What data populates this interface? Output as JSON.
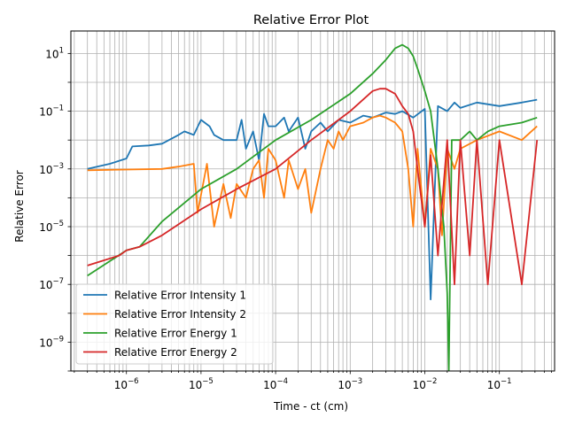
{
  "chart_data": {
    "type": "line",
    "title": "Relative Error Plot",
    "xlabel": "Time - ct (cm)",
    "ylabel": "Relative Error",
    "xscale": "log",
    "yscale": "log",
    "xlim": [
      1.8e-07,
      0.55
    ],
    "ylim": [
      1e-10,
      60
    ],
    "grid": "both (major and minor on x, major on y)",
    "legend": "lower-left",
    "x_ticks": [
      {
        "value": 1e-06,
        "base": "10",
        "exp": "−6"
      },
      {
        "value": 1e-05,
        "base": "10",
        "exp": "−5"
      },
      {
        "value": 0.0001,
        "base": "10",
        "exp": "−4"
      },
      {
        "value": 0.001,
        "base": "10",
        "exp": "−3"
      },
      {
        "value": 0.01,
        "base": "10",
        "exp": "−2"
      },
      {
        "value": 0.1,
        "base": "10",
        "exp": "−1"
      }
    ],
    "y_ticks": [
      {
        "value": 1e-09,
        "base": "10",
        "exp": "−9"
      },
      {
        "value": 1e-07,
        "base": "10",
        "exp": "−7"
      },
      {
        "value": 1e-05,
        "base": "10",
        "exp": "−5"
      },
      {
        "value": 0.001,
        "base": "10",
        "exp": "−3"
      },
      {
        "value": 0.1,
        "base": "10",
        "exp": "−1"
      },
      {
        "value": 10,
        "base": "10",
        "exp": "1"
      }
    ],
    "series": [
      {
        "name": "Relative Error Intensity 1",
        "color": "#1f77b4",
        "points": [
          [
            3e-07,
            0.001
          ],
          [
            6e-07,
            0.0015
          ],
          [
            1e-06,
            0.0023
          ],
          [
            1.2e-06,
            0.006
          ],
          [
            2e-06,
            0.0065
          ],
          [
            3e-06,
            0.0075
          ],
          [
            5e-06,
            0.015
          ],
          [
            6e-06,
            0.02
          ],
          [
            8e-06,
            0.015
          ],
          [
            1e-05,
            0.05
          ],
          [
            1.3e-05,
            0.03
          ],
          [
            1.5e-05,
            0.015
          ],
          [
            2e-05,
            0.01
          ],
          [
            2.5e-05,
            0.01
          ],
          [
            3e-05,
            0.01
          ],
          [
            3.5e-05,
            0.05
          ],
          [
            4e-05,
            0.005
          ],
          [
            5e-05,
            0.02
          ],
          [
            6e-05,
            0.002
          ],
          [
            7e-05,
            0.08
          ],
          [
            8e-05,
            0.03
          ],
          [
            0.0001,
            0.03
          ],
          [
            0.00013,
            0.06
          ],
          [
            0.00015,
            0.02
          ],
          [
            0.0002,
            0.06
          ],
          [
            0.00025,
            0.005
          ],
          [
            0.0003,
            0.02
          ],
          [
            0.0004,
            0.04
          ],
          [
            0.0005,
            0.02
          ],
          [
            0.0007,
            0.05
          ],
          [
            0.001,
            0.04
          ],
          [
            0.0015,
            0.07
          ],
          [
            0.002,
            0.06
          ],
          [
            0.003,
            0.09
          ],
          [
            0.004,
            0.08
          ],
          [
            0.005,
            0.1
          ],
          [
            0.007,
            0.06
          ],
          [
            0.01,
            0.12
          ],
          [
            0.012,
            3e-08
          ],
          [
            0.015,
            0.15
          ],
          [
            0.02,
            0.1
          ],
          [
            0.025,
            0.2
          ],
          [
            0.03,
            0.13
          ],
          [
            0.05,
            0.2
          ],
          [
            0.1,
            0.15
          ],
          [
            0.2,
            0.2
          ],
          [
            0.32,
            0.25
          ]
        ]
      },
      {
        "name": "Relative Error Intensity 2",
        "color": "#ff7f0e",
        "points": [
          [
            3e-07,
            0.0009
          ],
          [
            1e-06,
            0.00095
          ],
          [
            3e-06,
            0.001
          ],
          [
            5e-06,
            0.0012
          ],
          [
            8e-06,
            0.0015
          ],
          [
            9e-06,
            3e-05
          ],
          [
            1.2e-05,
            0.0015
          ],
          [
            1.5e-05,
            1e-05
          ],
          [
            2e-05,
            0.0003
          ],
          [
            2.5e-05,
            2e-05
          ],
          [
            3e-05,
            0.0003
          ],
          [
            4e-05,
            0.0001
          ],
          [
            5e-05,
            0.001
          ],
          [
            6e-05,
            0.002
          ],
          [
            7e-05,
            0.0001
          ],
          [
            8e-05,
            0.005
          ],
          [
            0.0001,
            0.002
          ],
          [
            0.00013,
            0.0001
          ],
          [
            0.00015,
            0.002
          ],
          [
            0.0002,
            0.0002
          ],
          [
            0.00025,
            0.001
          ],
          [
            0.0003,
            3e-05
          ],
          [
            0.0004,
            0.001
          ],
          [
            0.0005,
            0.01
          ],
          [
            0.0006,
            0.005
          ],
          [
            0.0007,
            0.02
          ],
          [
            0.0008,
            0.01
          ],
          [
            0.001,
            0.03
          ],
          [
            0.0015,
            0.04
          ],
          [
            0.002,
            0.06
          ],
          [
            0.0025,
            0.07
          ],
          [
            0.003,
            0.06
          ],
          [
            0.004,
            0.04
          ],
          [
            0.005,
            0.02
          ],
          [
            0.006,
            0.001
          ],
          [
            0.007,
            1e-05
          ],
          [
            0.008,
            0.005
          ],
          [
            0.01,
            1e-05
          ],
          [
            0.012,
            0.005
          ],
          [
            0.015,
            0.001
          ],
          [
            0.017,
            5e-06
          ],
          [
            0.02,
            0.005
          ],
          [
            0.025,
            0.001
          ],
          [
            0.03,
            0.005
          ],
          [
            0.05,
            0.01
          ],
          [
            0.1,
            0.02
          ],
          [
            0.2,
            0.01
          ],
          [
            0.32,
            0.03
          ]
        ]
      },
      {
        "name": "Relative Error Energy 1",
        "color": "#2ca02c",
        "points": [
          [
            3e-07,
            2e-07
          ],
          [
            1e-06,
            1.5e-06
          ],
          [
            1.5e-06,
            2e-06
          ],
          [
            3e-06,
            1.5e-05
          ],
          [
            1e-05,
            0.0002
          ],
          [
            3e-05,
            0.001
          ],
          [
            0.0001,
            0.01
          ],
          [
            0.0003,
            0.05
          ],
          [
            0.001,
            0.4
          ],
          [
            0.002,
            2
          ],
          [
            0.003,
            6
          ],
          [
            0.004,
            15
          ],
          [
            0.005,
            20
          ],
          [
            0.006,
            15
          ],
          [
            0.007,
            8
          ],
          [
            0.008,
            3
          ],
          [
            0.01,
            0.5
          ],
          [
            0.012,
            0.1
          ],
          [
            0.015,
            0.001
          ],
          [
            0.018,
            1e-05
          ],
          [
            0.02,
            5e-08
          ],
          [
            0.021,
            1e-10
          ],
          [
            0.023,
            0.01
          ],
          [
            0.03,
            0.01
          ],
          [
            0.04,
            0.02
          ],
          [
            0.05,
            0.01
          ],
          [
            0.07,
            0.02
          ],
          [
            0.1,
            0.03
          ],
          [
            0.2,
            0.04
          ],
          [
            0.32,
            0.06
          ]
        ]
      },
      {
        "name": "Relative Error Energy 2",
        "color": "#d62728",
        "points": [
          [
            3e-07,
            4.5e-07
          ],
          [
            8e-07,
            1e-06
          ],
          [
            1e-06,
            1.5e-06
          ],
          [
            1.5e-06,
            2e-06
          ],
          [
            3e-06,
            5e-06
          ],
          [
            1e-05,
            4e-05
          ],
          [
            3e-05,
            0.0002
          ],
          [
            0.0001,
            0.001
          ],
          [
            0.0003,
            0.01
          ],
          [
            0.001,
            0.1
          ],
          [
            0.002,
            0.5
          ],
          [
            0.0025,
            0.6
          ],
          [
            0.003,
            0.6
          ],
          [
            0.004,
            0.4
          ],
          [
            0.005,
            0.15
          ],
          [
            0.006,
            0.08
          ],
          [
            0.007,
            0.02
          ],
          [
            0.008,
            0.001
          ],
          [
            0.01,
            1e-05
          ],
          [
            0.012,
            0.003
          ],
          [
            0.015,
            1e-06
          ],
          [
            0.02,
            0.01
          ],
          [
            0.025,
            1e-07
          ],
          [
            0.03,
            0.01
          ],
          [
            0.04,
            1e-06
          ],
          [
            0.05,
            0.01
          ],
          [
            0.07,
            1e-07
          ],
          [
            0.1,
            0.01
          ],
          [
            0.2,
            1e-07
          ],
          [
            0.32,
            0.01
          ]
        ]
      }
    ]
  }
}
